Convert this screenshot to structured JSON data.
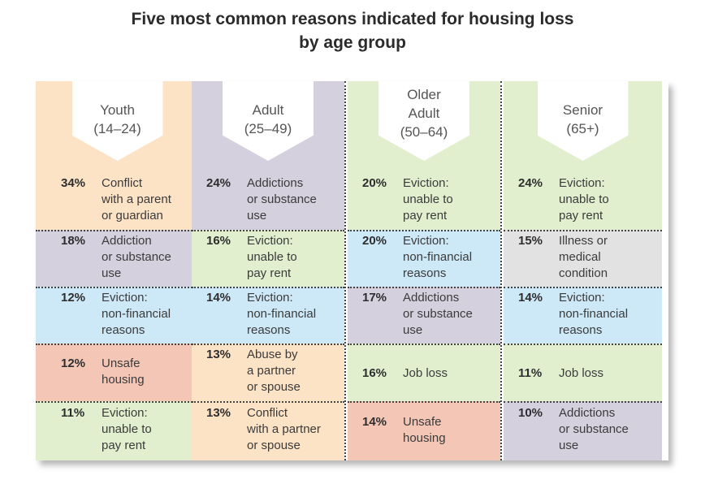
{
  "title": {
    "line1": "Five most common reasons indicated for housing loss",
    "line2": "by age group"
  },
  "colors": {
    "peach": "#fde3c6",
    "lavender": "#d4d0dd",
    "green": "#e2efcf",
    "blue": "#cde8f6",
    "salmon": "#f3c6b6",
    "grey": "#e2e2e2"
  },
  "chart_data": {
    "type": "table",
    "title": "Five most common reasons indicated for housing loss by age group",
    "groups": [
      {
        "name": "Youth",
        "name_line2": "",
        "range": "(14–24)",
        "items": [
          {
            "pct": "34%",
            "value": 34,
            "reason_lines": [
              "Conflict",
              "with a parent",
              "or guardian"
            ],
            "color": "peach"
          },
          {
            "pct": "18%",
            "value": 18,
            "reason_lines": [
              "Addiction",
              "or substance",
              "use"
            ],
            "color": "lavender"
          },
          {
            "pct": "12%",
            "value": 12,
            "reason_lines": [
              "Eviction:",
              "non-financial",
              "reasons"
            ],
            "color": "blue"
          },
          {
            "pct": "12%",
            "value": 12,
            "reason_lines": [
              "Unsafe",
              "housing"
            ],
            "color": "salmon"
          },
          {
            "pct": "11%",
            "value": 11,
            "reason_lines": [
              "Eviction:",
              "unable to",
              "pay rent"
            ],
            "color": "green"
          }
        ]
      },
      {
        "name": "Adult",
        "name_line2": "",
        "range": "(25–49)",
        "items": [
          {
            "pct": "24%",
            "value": 24,
            "reason_lines": [
              "Addictions",
              "or substance",
              "use"
            ],
            "color": "lavender"
          },
          {
            "pct": "16%",
            "value": 16,
            "reason_lines": [
              "Eviction:",
              "unable to",
              "pay rent"
            ],
            "color": "green"
          },
          {
            "pct": "14%",
            "value": 14,
            "reason_lines": [
              "Eviction:",
              "non-financial",
              "reasons"
            ],
            "color": "blue"
          },
          {
            "pct": "13%",
            "value": 13,
            "reason_lines": [
              "Abuse by",
              "a partner",
              "or spouse"
            ],
            "color": "peach"
          },
          {
            "pct": "13%",
            "value": 13,
            "reason_lines": [
              "Conflict",
              "with a partner",
              "or spouse"
            ],
            "color": "peach"
          }
        ]
      },
      {
        "name": "Older",
        "name_line2": "Adult",
        "range": "(50–64)",
        "items": [
          {
            "pct": "20%",
            "value": 20,
            "reason_lines": [
              "Eviction:",
              "unable to",
              "pay rent"
            ],
            "color": "green"
          },
          {
            "pct": "20%",
            "value": 20,
            "reason_lines": [
              "Eviction:",
              "non-financial",
              "reasons"
            ],
            "color": "blue"
          },
          {
            "pct": "17%",
            "value": 17,
            "reason_lines": [
              "Addictions",
              "or substance",
              "use"
            ],
            "color": "lavender"
          },
          {
            "pct": "16%",
            "value": 16,
            "reason_lines": [
              "Job loss"
            ],
            "color": "green"
          },
          {
            "pct": "14%",
            "value": 14,
            "reason_lines": [
              "Unsafe",
              "housing"
            ],
            "color": "salmon"
          }
        ]
      },
      {
        "name": "Senior",
        "name_line2": "",
        "range": "(65+)",
        "items": [
          {
            "pct": "24%",
            "value": 24,
            "reason_lines": [
              "Eviction:",
              "unable to",
              "pay rent"
            ],
            "color": "green"
          },
          {
            "pct": "15%",
            "value": 15,
            "reason_lines": [
              "Illness or",
              "medical",
              "condition"
            ],
            "color": "grey"
          },
          {
            "pct": "14%",
            "value": 14,
            "reason_lines": [
              "Eviction:",
              "non-financial",
              "reasons"
            ],
            "color": "blue"
          },
          {
            "pct": "11%",
            "value": 11,
            "reason_lines": [
              "Job loss"
            ],
            "color": "green"
          },
          {
            "pct": "10%",
            "value": 10,
            "reason_lines": [
              "Addictions",
              "or substance",
              "use"
            ],
            "color": "lavender"
          }
        ]
      }
    ]
  }
}
